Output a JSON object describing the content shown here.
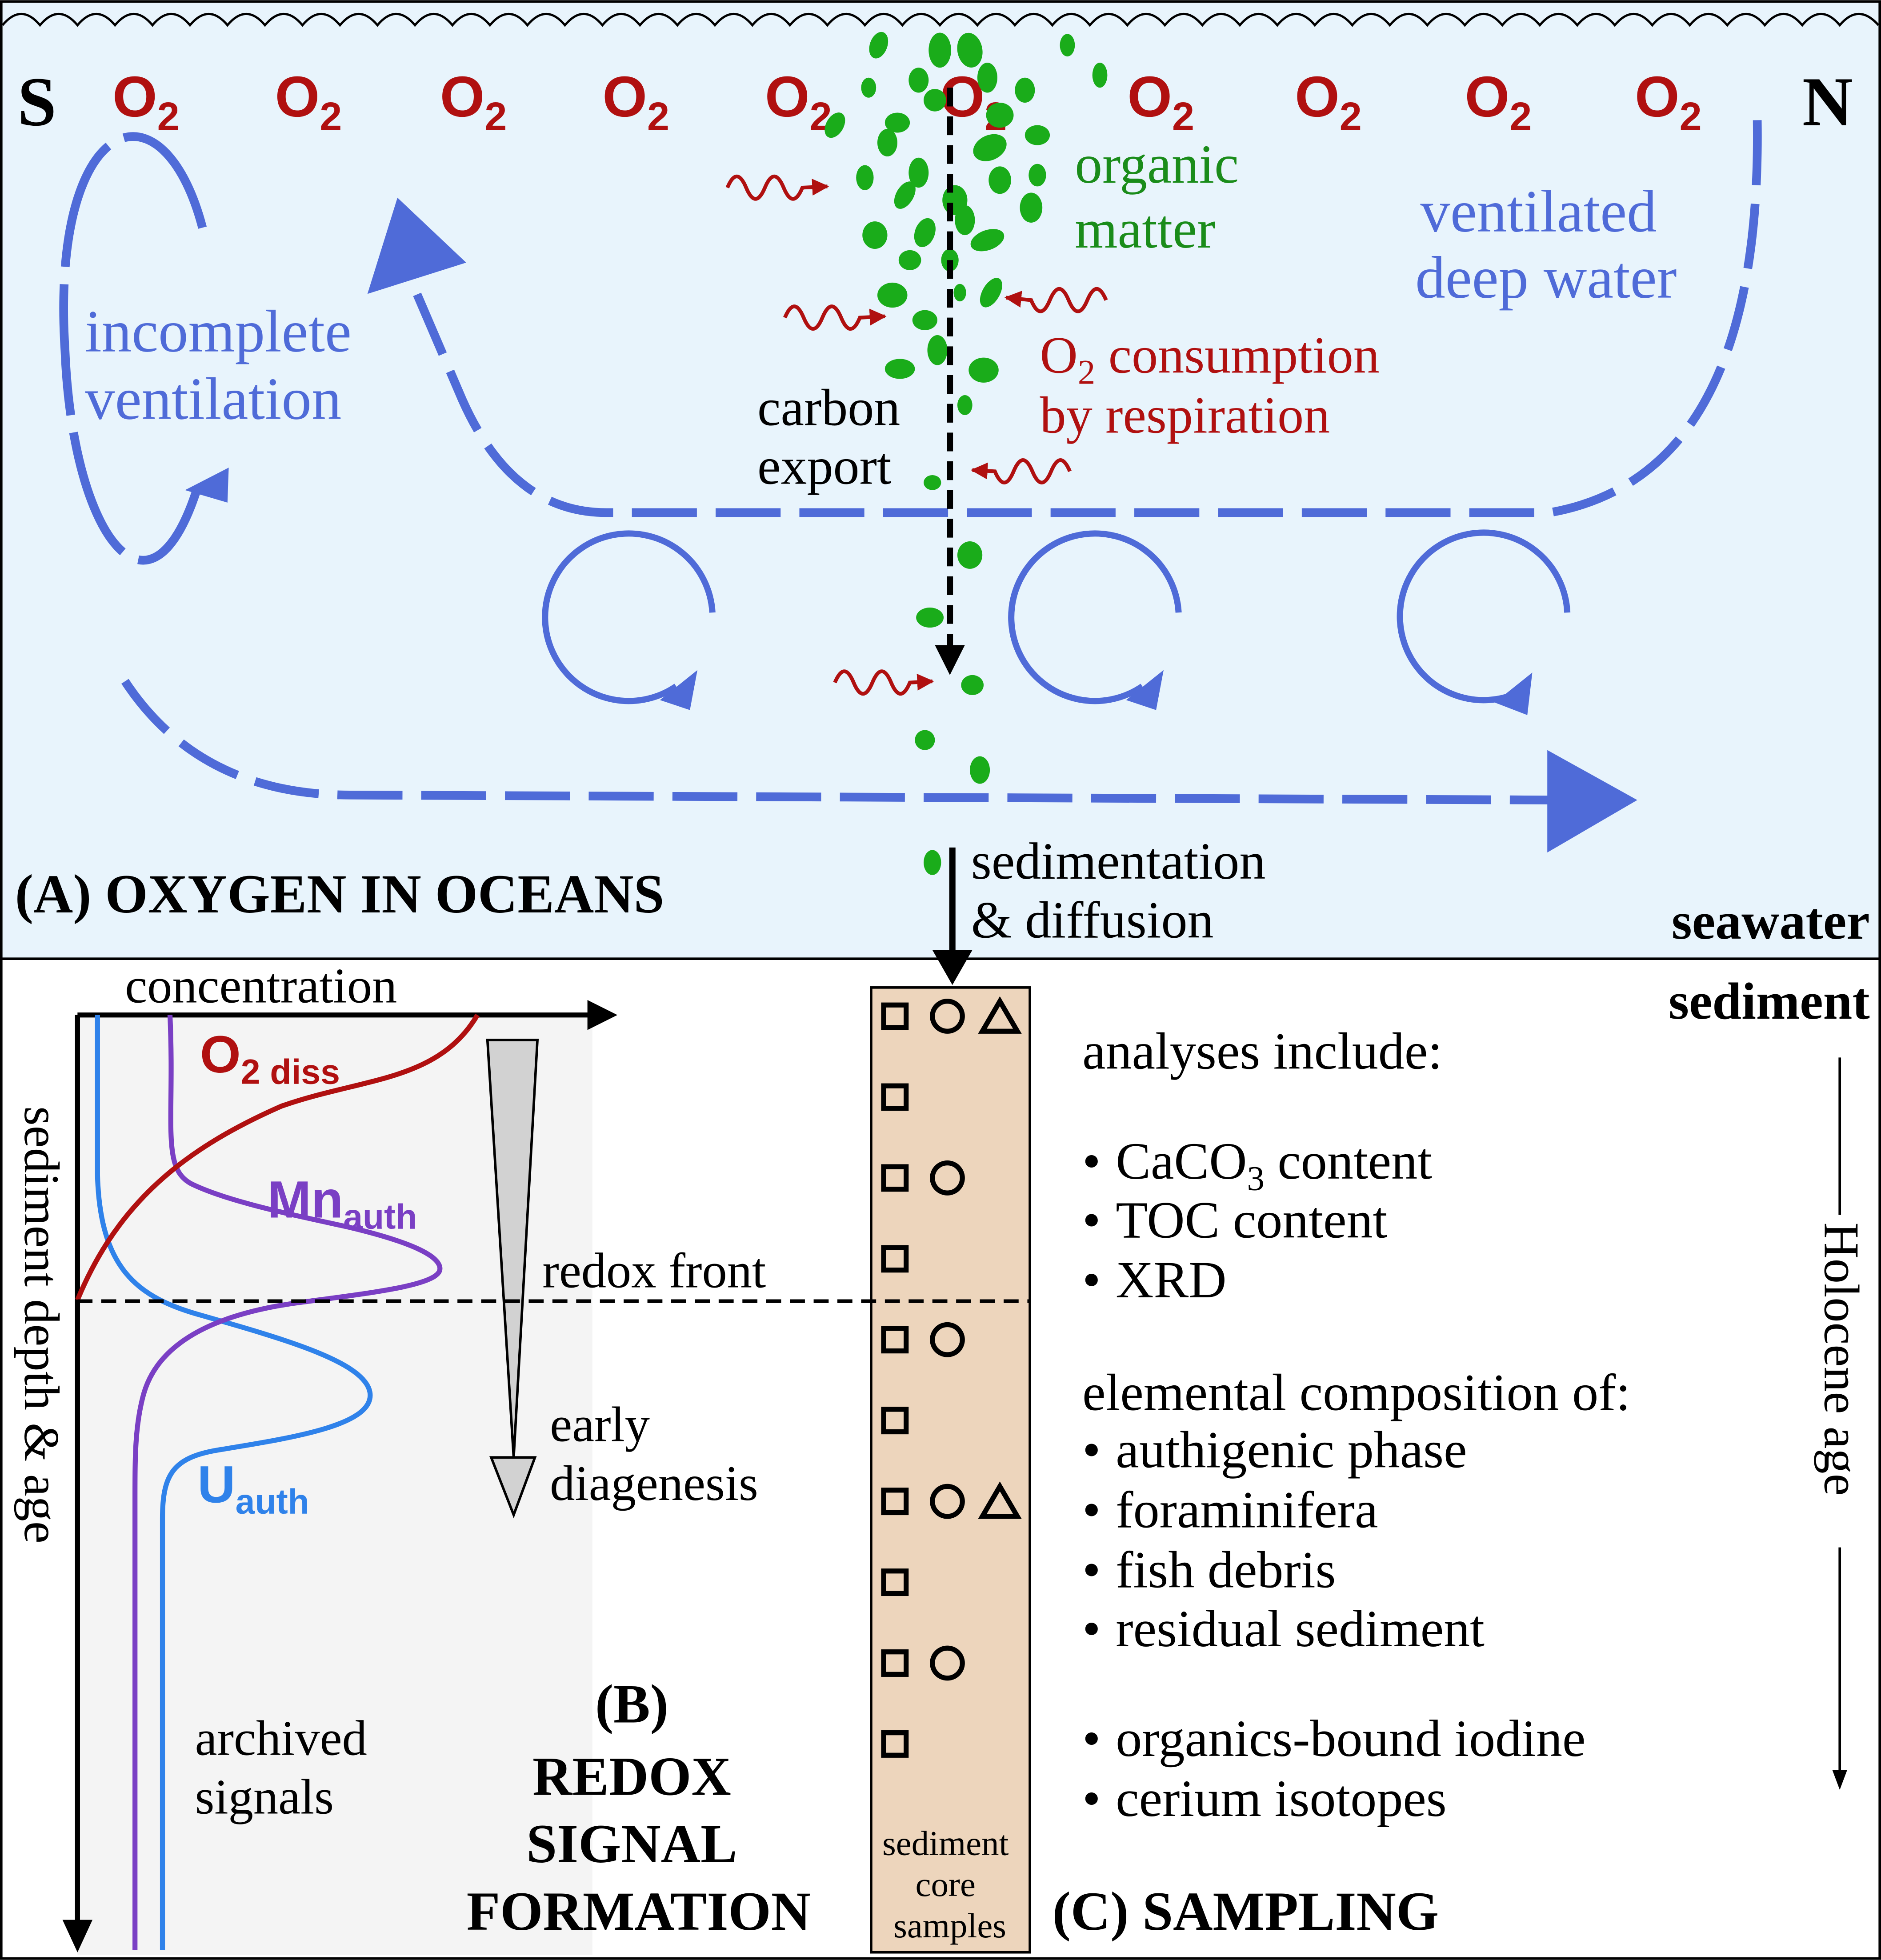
{
  "colors": {
    "seawater_bg": "#e8f4fc",
    "sediment_bg": "#ffffff",
    "profile_panel_bg": "#f4f4f4",
    "core_fill": "#edd5bc",
    "circulation": "#4f6bd8",
    "oxygen": "#b01010",
    "organic_matter": "#1aac1a",
    "organic_text": "#1a8c1a",
    "manganese": "#7a3fc4",
    "uranium": "#2f82ea",
    "ink": "#000000",
    "arrow_grey": "#d2d2d2"
  },
  "panel_a": {
    "south_label": "S",
    "north_label": "N",
    "o2_symbols": [
      "O",
      "O",
      "O",
      "O",
      "O",
      "O",
      "O",
      "O",
      "O",
      "O"
    ],
    "o2_subscript": "2",
    "organic_matter_label": [
      "organic",
      "matter"
    ],
    "carbon_export_label": [
      "carbon",
      "export"
    ],
    "o2_consumption_main": "O",
    "o2_consumption_sub": "2",
    "o2_consumption_rest": " consumption",
    "o2_consumption_line2": "by respiration",
    "ventilated_label": [
      "ventilated",
      "deep water"
    ],
    "incomplete_label": [
      "incomplete",
      "ventilation"
    ],
    "sedimentation_label": [
      "sedimentation",
      "& diffusion"
    ],
    "panel_title": "(A) OXYGEN IN OCEANS",
    "seawater_label": "seawater",
    "sediment_label": "sediment"
  },
  "panel_b": {
    "x_axis_label": "concentration",
    "y_axis_label": "sediment depth & age",
    "o2_label_main": "O",
    "o2_label_sub": "2 diss",
    "mn_label_main": "Mn",
    "mn_label_sub": "auth",
    "u_label_main": "U",
    "u_label_sub": "auth",
    "redox_front_label": "redox front",
    "diagenesis_label": [
      "early",
      "diagenesis"
    ],
    "archived_label": [
      "archived",
      "signals"
    ],
    "panel_title": [
      "(B)",
      "REDOX",
      "SIGNAL",
      "FORMATION"
    ]
  },
  "panel_c": {
    "core_label": [
      "sediment",
      "core",
      "samples"
    ],
    "sample_rows": [
      {
        "square": true,
        "circle": true,
        "triangle": true
      },
      {
        "square": true,
        "circle": false,
        "triangle": false
      },
      {
        "square": true,
        "circle": true,
        "triangle": false
      },
      {
        "square": true,
        "circle": false,
        "triangle": false
      },
      {
        "square": true,
        "circle": true,
        "triangle": false
      },
      {
        "square": true,
        "circle": false,
        "triangle": false
      },
      {
        "square": true,
        "circle": true,
        "triangle": true
      },
      {
        "square": true,
        "circle": false,
        "triangle": false
      },
      {
        "square": true,
        "circle": true,
        "triangle": false
      },
      {
        "square": true,
        "circle": false,
        "triangle": false
      }
    ],
    "analyses_header": "analyses include:",
    "bullet": "•",
    "caco3_main": "CaCO",
    "caco3_sub": "3",
    "caco3_rest": " content",
    "toc_item": "TOC content",
    "xrd_item": "XRD",
    "elemental_header": "elemental composition of:",
    "elemental_items": [
      "authigenic phase",
      "foraminifera",
      "fish debris",
      "residual sediment"
    ],
    "extra_items": [
      "organics-bound iodine",
      "cerium isotopes"
    ],
    "holocene_label": "Holocene age",
    "panel_title": "(C) SAMPLING"
  }
}
